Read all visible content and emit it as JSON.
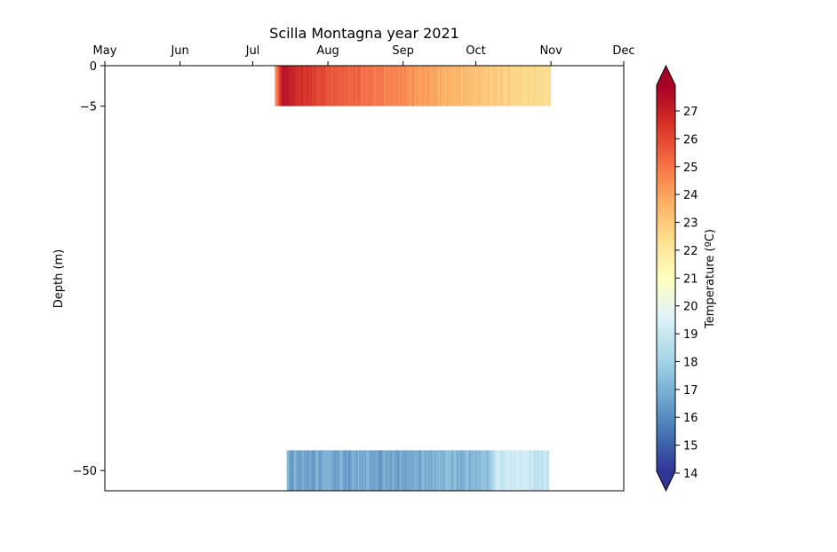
{
  "chart_data": {
    "type": "heatmap",
    "title": "Scilla Montagna year 2021",
    "ylabel": "Depth (m)",
    "x_ticks": [
      "May",
      "Jun",
      "Jul",
      "Aug",
      "Sep",
      "Oct",
      "Nov",
      "Dec"
    ],
    "x_range": [
      "2021-05-01",
      "2021-12-01"
    ],
    "y_ticks": [
      0,
      -5,
      -50
    ],
    "y_range": [
      -52.5,
      0
    ],
    "series": [
      {
        "depth": -5,
        "band": [
          0,
          -5
        ],
        "start": "2021-07-10",
        "end": "2021-11-01",
        "temperature_stops": [
          {
            "date": "2021-07-10",
            "value": 23.0
          },
          {
            "date": "2021-07-13",
            "value": 26.5
          },
          {
            "date": "2021-07-25",
            "value": 25.5
          },
          {
            "date": "2021-08-15",
            "value": 24.5
          },
          {
            "date": "2021-09-01",
            "value": 23.8
          },
          {
            "date": "2021-09-20",
            "value": 23.0
          },
          {
            "date": "2021-10-10",
            "value": 22.3
          },
          {
            "date": "2021-11-01",
            "value": 21.8
          }
        ]
      },
      {
        "depth": -50,
        "band": [
          -47.5,
          -52.5
        ],
        "start": "2021-07-15",
        "end": "2021-10-31",
        "temperature_stops": [
          {
            "date": "2021-07-15",
            "value": 16.3
          },
          {
            "date": "2021-08-15",
            "value": 16.2
          },
          {
            "date": "2021-09-01",
            "value": 16.3
          },
          {
            "date": "2021-09-20",
            "value": 16.6
          },
          {
            "date": "2021-10-05",
            "value": 16.8
          },
          {
            "date": "2021-10-10",
            "value": 18.5
          },
          {
            "date": "2021-10-20",
            "value": 18.8
          },
          {
            "date": "2021-10-31",
            "value": 18.0
          }
        ]
      }
    ],
    "colorbar": {
      "label": "Temperature (ºC)",
      "min": 14,
      "max": 27,
      "ticks": [
        14,
        15,
        16,
        17,
        18,
        19,
        20,
        21,
        22,
        23,
        24,
        25,
        26,
        27
      ],
      "extend": "both",
      "colormap": [
        "#313695",
        "#4575b4",
        "#74add1",
        "#abd9e9",
        "#e0f3f8",
        "#ffffbf",
        "#fee090",
        "#fdae61",
        "#f46d43",
        "#d73027",
        "#a50026"
      ]
    }
  }
}
